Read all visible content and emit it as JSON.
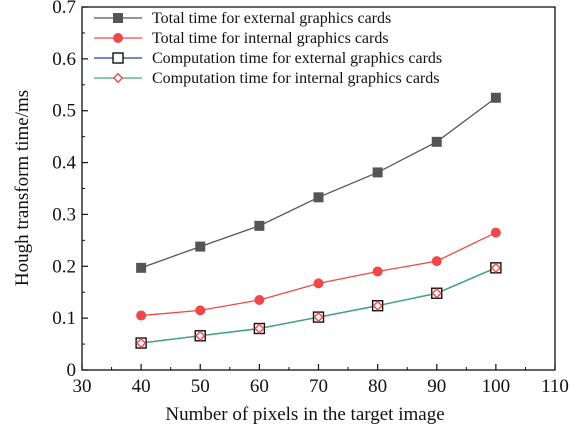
{
  "chart_data": {
    "type": "line",
    "title": "",
    "xlabel": "Number of pixels in the target image",
    "ylabel": "Hough transform time/ms",
    "xlim": [
      30,
      110
    ],
    "ylim": [
      0,
      0.7
    ],
    "xticks": [
      30,
      40,
      50,
      60,
      70,
      80,
      90,
      100,
      110
    ],
    "yticks": [
      0,
      0.1,
      0.2,
      0.3,
      0.4,
      0.5,
      0.6,
      0.7
    ],
    "ytick_labels": [
      "0",
      "0.1",
      "0.2",
      "0.3",
      "0.4",
      "0.5",
      "0.6",
      "0.7"
    ],
    "grid": false,
    "legend_position": "top-left",
    "x": [
      40,
      50,
      60,
      70,
      80,
      90,
      100
    ],
    "series": [
      {
        "name": "Total time for external graphics cards",
        "values": [
          0.197,
          0.238,
          0.278,
          0.333,
          0.381,
          0.44,
          0.525
        ],
        "color": "#555555",
        "marker": "filled-square"
      },
      {
        "name": "Total time for internal graphics cards",
        "values": [
          0.105,
          0.115,
          0.135,
          0.167,
          0.19,
          0.21,
          0.265
        ],
        "color": "#f04848",
        "marker": "filled-circle"
      },
      {
        "name": "Computation time for external graphics cards",
        "values": [
          0.052,
          0.066,
          0.08,
          0.102,
          0.124,
          0.148,
          0.197
        ],
        "color": "#2040a0",
        "marker": "open-square"
      },
      {
        "name": "Computation time for internal graphics cards",
        "values": [
          0.052,
          0.066,
          0.08,
          0.102,
          0.124,
          0.148,
          0.197
        ],
        "color": "#3aaa7a",
        "marker": "open-diamond",
        "marker_color": "#f04848"
      }
    ]
  }
}
